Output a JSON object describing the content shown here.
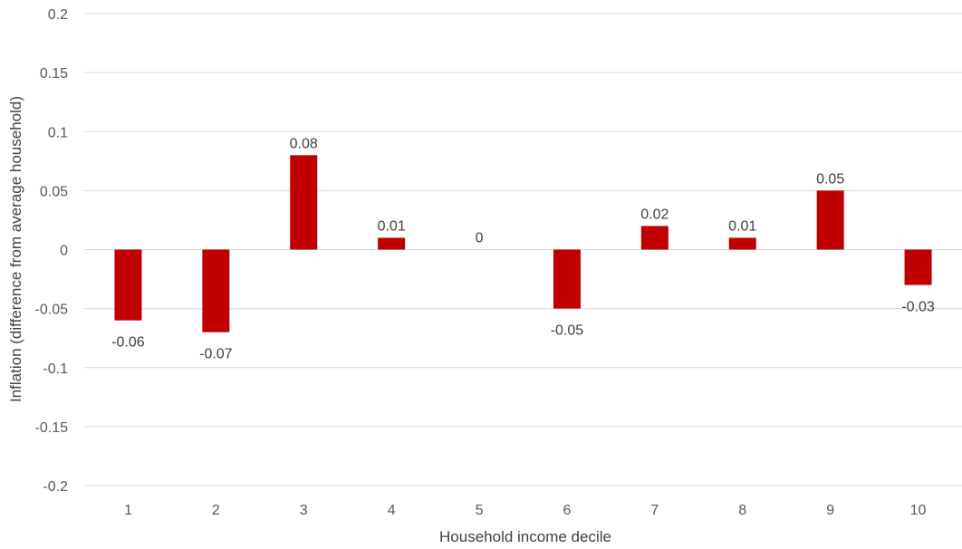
{
  "chart_data": {
    "type": "bar",
    "title": "",
    "xlabel": "Household income decile",
    "ylabel": "Inflation (difference from average household)",
    "categories": [
      "1",
      "2",
      "3",
      "4",
      "5",
      "6",
      "7",
      "8",
      "9",
      "10"
    ],
    "values": [
      -0.06,
      -0.07,
      0.08,
      0.01,
      0,
      -0.05,
      0.02,
      0.01,
      0.05,
      -0.03
    ],
    "data_labels": [
      "-0.06",
      "-0.07",
      "0.08",
      "0.01",
      "0",
      "-0.05",
      "0.02",
      "0.01",
      "0.05",
      "-0.03"
    ],
    "ylim": [
      -0.2,
      0.2
    ],
    "yticks": [
      0.2,
      0.15,
      0.1,
      0.05,
      0,
      -0.05,
      -0.1,
      -0.15,
      -0.2
    ],
    "ytick_labels": [
      "0.2",
      "0.15",
      "0.1",
      "0.05",
      "0",
      "-0.05",
      "-0.1",
      "-0.15",
      "-0.2"
    ],
    "grid": true,
    "legend": "none",
    "bar_color": "#c00000",
    "grid_color": "#d9d9d9"
  }
}
